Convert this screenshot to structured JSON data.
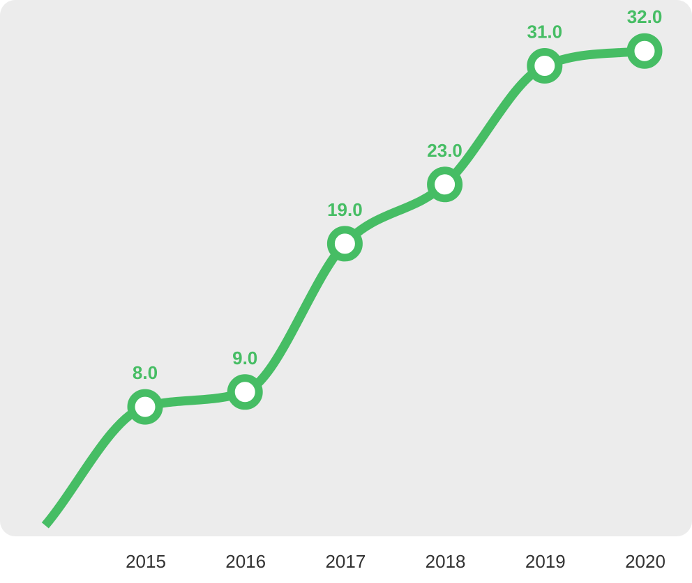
{
  "colors": {
    "series": "#46bd64",
    "plot_background": "#ececec",
    "tick_text": "#333333",
    "marker_fill": "#ffffff"
  },
  "chart_data": {
    "type": "line",
    "x": [
      "2015",
      "2016",
      "2017",
      "2018",
      "2019",
      "2020"
    ],
    "series": [
      {
        "values": [
          8.0,
          9.0,
          19.0,
          23.0,
          31.0,
          32.0
        ],
        "labels": [
          "8.0",
          "9.0",
          "19.0",
          "23.0",
          "31.0",
          "32.0"
        ]
      }
    ],
    "ylim": [
      -0.5,
      34.5
    ],
    "grid": false,
    "legend": "none",
    "smooth": true,
    "line_enters_from_left": true
  }
}
